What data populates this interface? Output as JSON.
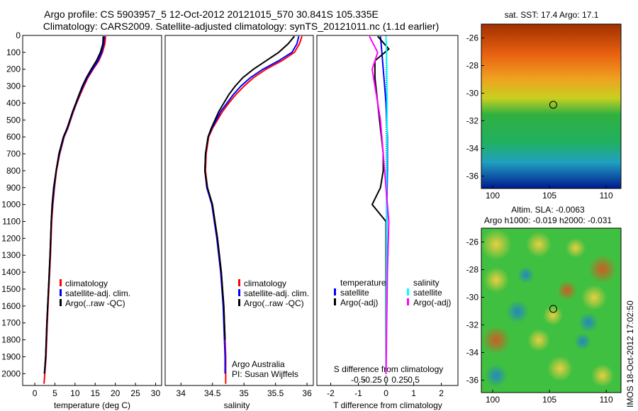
{
  "title_line1": "Argo profile: CS 5903957_5 12-Oct-2012 20121015_570 30.841S 105.335E",
  "title_line2": "Climatology: CARS2009. Satellite-adjusted climatology: synTS_20121011.nc (1.1d earlier)",
  "colors": {
    "climatology": "#ff0000",
    "satellite": "#0000ff",
    "argo": "#000000",
    "sal_satellite": "#00ffff",
    "sal_argo": "#ff00ff"
  },
  "chart_data": [
    {
      "type": "line",
      "xlabel": "temperature (deg C)",
      "ylabel": "",
      "xlim": [
        -3,
        31.5
      ],
      "ylim": [
        2070,
        0
      ],
      "xticks": [
        "0",
        "5",
        "10",
        "15",
        "20",
        "25",
        "30"
      ],
      "yticks": [
        "0",
        "100",
        "200",
        "300",
        "400",
        "500",
        "600",
        "700",
        "800",
        "900",
        "1000",
        "1100",
        "1200",
        "1300",
        "1400",
        "1500",
        "1600",
        "1700",
        "1800",
        "1900",
        "2000"
      ],
      "legend": [
        "climatology",
        "satellite-adj. clim.",
        "Argo(..raw -QC)"
      ],
      "series": [
        {
          "name": "climatology",
          "x": [
            17.6,
            17.4,
            16.8,
            15.9,
            14.5,
            13.2,
            12.2,
            11.3,
            10.4,
            9.6,
            8.9,
            8.2,
            7.3,
            6.2,
            5.4,
            4.9,
            4.5,
            4.2,
            3.9,
            3.5,
            3.1,
            2.8,
            2.5,
            2.3
          ],
          "y": [
            5,
            50,
            100,
            150,
            200,
            250,
            300,
            350,
            400,
            450,
            500,
            550,
            600,
            700,
            800,
            900,
            1000,
            1100,
            1300,
            1500,
            1700,
            1900,
            2000,
            2060
          ]
        },
        {
          "name": "satellite-adj. clim.",
          "x": [
            17.3,
            17.1,
            16.6,
            15.7,
            14.3,
            13.0,
            12.0,
            11.1,
            10.3,
            9.5,
            8.8,
            8.1,
            7.2,
            6.1,
            5.3,
            4.8,
            4.4,
            4.1,
            3.8,
            3.4,
            3.0,
            2.7,
            2.4
          ],
          "y": [
            5,
            50,
            100,
            150,
            200,
            250,
            300,
            350,
            400,
            450,
            500,
            550,
            600,
            700,
            800,
            900,
            1000,
            1100,
            1300,
            1500,
            1700,
            1900,
            2000
          ]
        },
        {
          "name": "Argo(..raw -QC)",
          "x": [
            17.0,
            16.9,
            16.3,
            15.3,
            14.0,
            12.8,
            11.8,
            11.0,
            10.2,
            9.4,
            8.7,
            8.0,
            7.1,
            6.0,
            5.3,
            4.7,
            4.3,
            4.1,
            3.8,
            3.4,
            3.0,
            2.7,
            2.4
          ],
          "y": [
            5,
            50,
            100,
            150,
            200,
            250,
            300,
            350,
            400,
            450,
            500,
            550,
            600,
            700,
            800,
            900,
            1000,
            1100,
            1300,
            1500,
            1700,
            1900,
            2000
          ]
        }
      ]
    },
    {
      "type": "line",
      "xlabel": "salinity",
      "xlim": [
        33.75,
        36.1
      ],
      "ylim": [
        2070,
        0
      ],
      "xticks": [
        "34",
        "34.5",
        "35",
        "35.5",
        "36"
      ],
      "legend": [
        "climatology",
        "satellite-adj. clim.",
        "Argo(..raw -QC)"
      ],
      "annotations": [
        "Argo Australia",
        "PI: Susan Wijffels"
      ],
      "series": [
        {
          "name": "climatology",
          "x": [
            35.92,
            35.88,
            35.8,
            35.6,
            35.35,
            35.15,
            35.0,
            34.87,
            34.76,
            34.66,
            34.58,
            34.5,
            34.44,
            34.4,
            34.39,
            34.42,
            34.5,
            34.58,
            34.64,
            34.68,
            34.7,
            34.71,
            34.71,
            34.71
          ],
          "y": [
            5,
            50,
            100,
            150,
            200,
            250,
            300,
            350,
            400,
            450,
            500,
            550,
            600,
            700,
            800,
            900,
            1000,
            1200,
            1400,
            1600,
            1800,
            1900,
            2000,
            2060
          ]
        },
        {
          "name": "satellite-adj. clim.",
          "x": [
            35.87,
            35.84,
            35.76,
            35.55,
            35.3,
            35.1,
            34.95,
            34.83,
            34.73,
            34.63,
            34.56,
            34.49,
            34.43,
            34.39,
            34.38,
            34.41,
            34.49,
            34.57,
            34.63,
            34.67,
            34.69,
            34.7,
            34.7
          ],
          "y": [
            5,
            50,
            100,
            150,
            200,
            250,
            300,
            350,
            400,
            450,
            500,
            550,
            600,
            700,
            800,
            900,
            1000,
            1200,
            1400,
            1600,
            1800,
            1900,
            2000
          ]
        },
        {
          "name": "Argo(..raw -QC)",
          "x": [
            35.8,
            35.7,
            35.55,
            35.35,
            35.15,
            34.98,
            34.86,
            34.76,
            34.68,
            34.6,
            34.54,
            34.48,
            34.43,
            34.39,
            34.38,
            34.42,
            34.5,
            34.58,
            34.64,
            34.68,
            34.7
          ],
          "y": [
            5,
            50,
            100,
            150,
            200,
            250,
            300,
            350,
            400,
            450,
            500,
            550,
            600,
            700,
            800,
            900,
            1000,
            1200,
            1400,
            1600,
            1800
          ]
        }
      ]
    },
    {
      "type": "line",
      "xlabel": "T difference from climatology",
      "xlabel2": "S difference from climatology",
      "xlim": [
        -2.5,
        2.6
      ],
      "ylim": [
        2070,
        0
      ],
      "xticks": [
        "-2",
        "-1",
        "0",
        "1",
        "2"
      ],
      "xticks2": [
        "-0.5",
        "-0.25",
        "0",
        "0.25",
        "0.5"
      ],
      "legend_headers": [
        "temperature",
        "salinity"
      ],
      "legend": [
        "satellite",
        "Argo(-adj)",
        "satellite",
        "Argo(-adj)"
      ],
      "series": [
        {
          "name": "satellite",
          "x": [
            -0.2,
            -0.15,
            -0.1,
            -0.05,
            0,
            0.05,
            0.05,
            0.03,
            0.02,
            0.01,
            0.0
          ],
          "y": [
            5,
            100,
            200,
            300,
            400,
            600,
            800,
            1000,
            1300,
            1700,
            2000
          ]
        },
        {
          "name": "Argo(-adj)",
          "x": [
            -0.3,
            0.1,
            -0.4,
            -0.4,
            -0.3,
            -0.2,
            -0.1,
            -0.1,
            -0.2,
            -0.5,
            0.0,
            0.0,
            0.0
          ],
          "y": [
            5,
            80,
            150,
            250,
            400,
            550,
            700,
            800,
            900,
            1000,
            1100,
            1500,
            2000
          ]
        },
        {
          "name": "satellite",
          "x": [
            0.0,
            0.02,
            0.03,
            0.04,
            0.03,
            0.02,
            0.02,
            0.01,
            0.0
          ],
          "y": [
            5,
            100,
            200,
            400,
            700,
            1000,
            1300,
            1700,
            2000
          ]
        },
        {
          "name": "Argo(-adj)",
          "x": [
            -0.6,
            -0.3,
            -0.5,
            -0.4,
            -0.2,
            -0.1,
            0.0,
            0.1,
            0.05,
            0.0
          ],
          "y": [
            5,
            100,
            200,
            300,
            500,
            700,
            900,
            1100,
            1400,
            2000
          ]
        }
      ]
    }
  ],
  "map_top": {
    "title": "sat. SST: 17.4  Argo: 17.1",
    "xticks": [
      "100",
      "105",
      "110"
    ],
    "yticks": [
      "-26",
      "-28",
      "-30",
      "-32",
      "-34",
      "-36"
    ],
    "marker_lon": 105.335,
    "marker_lat": -30.841
  },
  "map_bottom": {
    "title_line1": "Altim. SLA: -0.0063",
    "title_line2": "Argo h1000: -0.019 h2000: -0.031",
    "xticks": [
      "100",
      "105",
      "110"
    ],
    "yticks": [
      "-26",
      "-28",
      "-30",
      "-32",
      "-34",
      "-36"
    ],
    "marker_lon": 105.335,
    "marker_lat": -30.841
  },
  "watermark": "IMOS 18-Oct-2012 17:02:50"
}
